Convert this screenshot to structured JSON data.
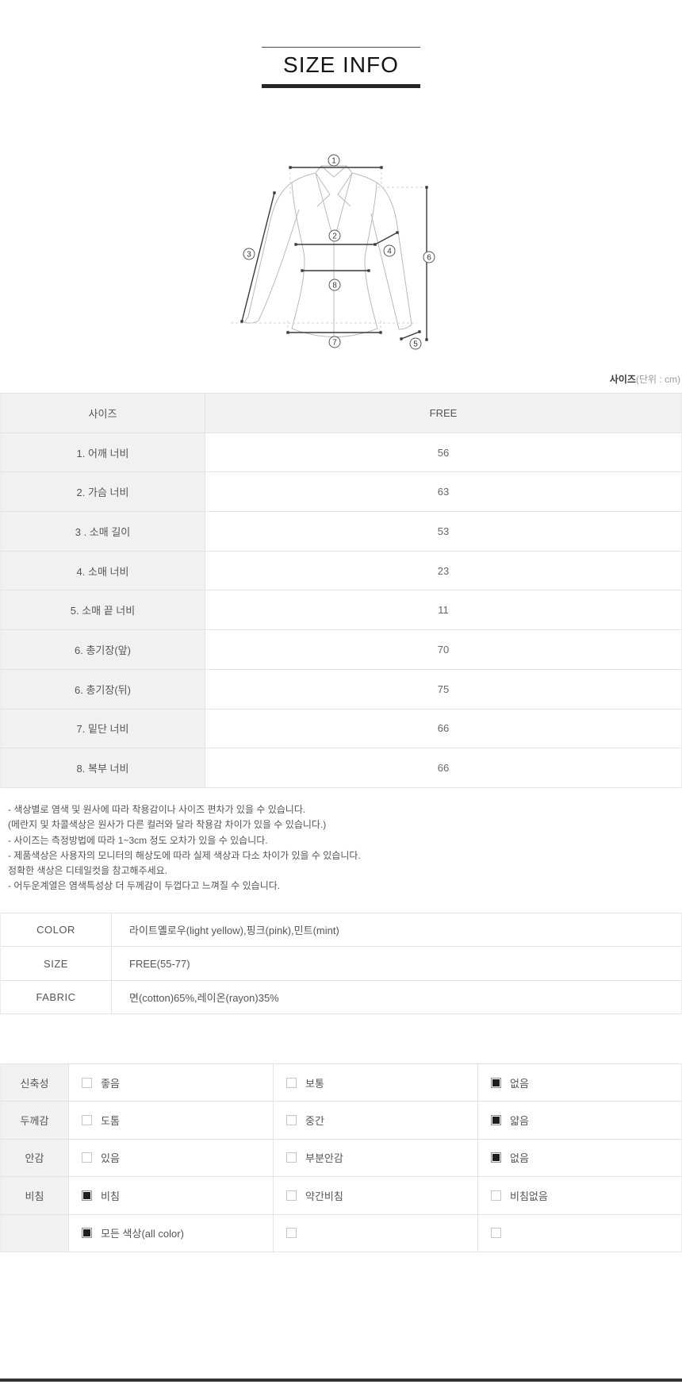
{
  "title": "SIZE INFO",
  "unit_label": {
    "bold": "사이즈",
    "rest": "(단위 : cm)"
  },
  "diagram": {
    "numbers": [
      "1",
      "2",
      "3",
      "4",
      "5",
      "6",
      "7",
      "8"
    ]
  },
  "size_table": {
    "header": [
      "사이즈",
      "FREE"
    ],
    "rows": [
      {
        "label": "1. 어깨 너비",
        "value": "56"
      },
      {
        "label": "2. 가슴 너비",
        "value": "63"
      },
      {
        "label": "3 . 소매 길이",
        "value": "53"
      },
      {
        "label": "4. 소매 너비",
        "value": "23"
      },
      {
        "label": "5. 소매 끝 너비",
        "value": "11"
      },
      {
        "label": "6. 총기장(앞)",
        "value": "70"
      },
      {
        "label": "6. 총기장(뒤)",
        "value": "75"
      },
      {
        "label": "7. 밑단 너비",
        "value": "66"
      },
      {
        "label": "8. 복부 너비",
        "value": "66"
      }
    ]
  },
  "notes": [
    "- 색상별로 염색 및 원사에 따라 착용감이나 사이즈 편차가 있을 수 있습니다.",
    "(메란지 및 차콜색상은 원사가 다른 컬러와 달라 착용감 차이가 있을 수 있습니다.)",
    "- 사이즈는 측정방법에 따라 1~3cm 정도 오차가 있을 수 있습니다.",
    "- 제품색상은 사용자의 모니터의 해상도에 따라 실제 색상과 다소 차이가 있을 수 있습니다.",
    "정확한 색상은 디테일컷을 참고해주세요.",
    "- 어두운계열은 염색특성상 더 두께감이 두껍다고 느껴질 수 있습니다."
  ],
  "info_table": {
    "rows": [
      {
        "label": "COLOR",
        "value": "라이트옐로우(light yellow),핑크(pink),민트(mint)"
      },
      {
        "label": "SIZE",
        "value": "FREE(55-77)"
      },
      {
        "label": "FABRIC",
        "value": "면(cotton)65%,레이온(rayon)35%"
      }
    ]
  },
  "attribute_table": {
    "rows": [
      {
        "label": "신축성",
        "options": [
          {
            "text": "좋음",
            "checked": false
          },
          {
            "text": "보통",
            "checked": false
          },
          {
            "text": "없음",
            "checked": true
          }
        ]
      },
      {
        "label": "두께감",
        "options": [
          {
            "text": "도톰",
            "checked": false
          },
          {
            "text": "중간",
            "checked": false
          },
          {
            "text": "얇음",
            "checked": true
          }
        ]
      },
      {
        "label": "안감",
        "options": [
          {
            "text": "있음",
            "checked": false
          },
          {
            "text": "부분안감",
            "checked": false
          },
          {
            "text": "없음",
            "checked": true
          }
        ]
      },
      {
        "label": "비침",
        "options": [
          {
            "text": "비침",
            "checked": true
          },
          {
            "text": "약간비침",
            "checked": false
          },
          {
            "text": "비침없음",
            "checked": false
          }
        ]
      },
      {
        "label": "",
        "options": [
          {
            "text": "모든 색상(all color)",
            "checked": true
          },
          {
            "text": "",
            "checked": false
          },
          {
            "text": "",
            "checked": false
          }
        ]
      }
    ]
  },
  "colors": {
    "accent_dark": "#262626",
    "table_header_bg": "#f1f1f1",
    "table_border": "#e3e3e3",
    "text": "#555555",
    "checkbox_fill": "#1f1f1f"
  }
}
